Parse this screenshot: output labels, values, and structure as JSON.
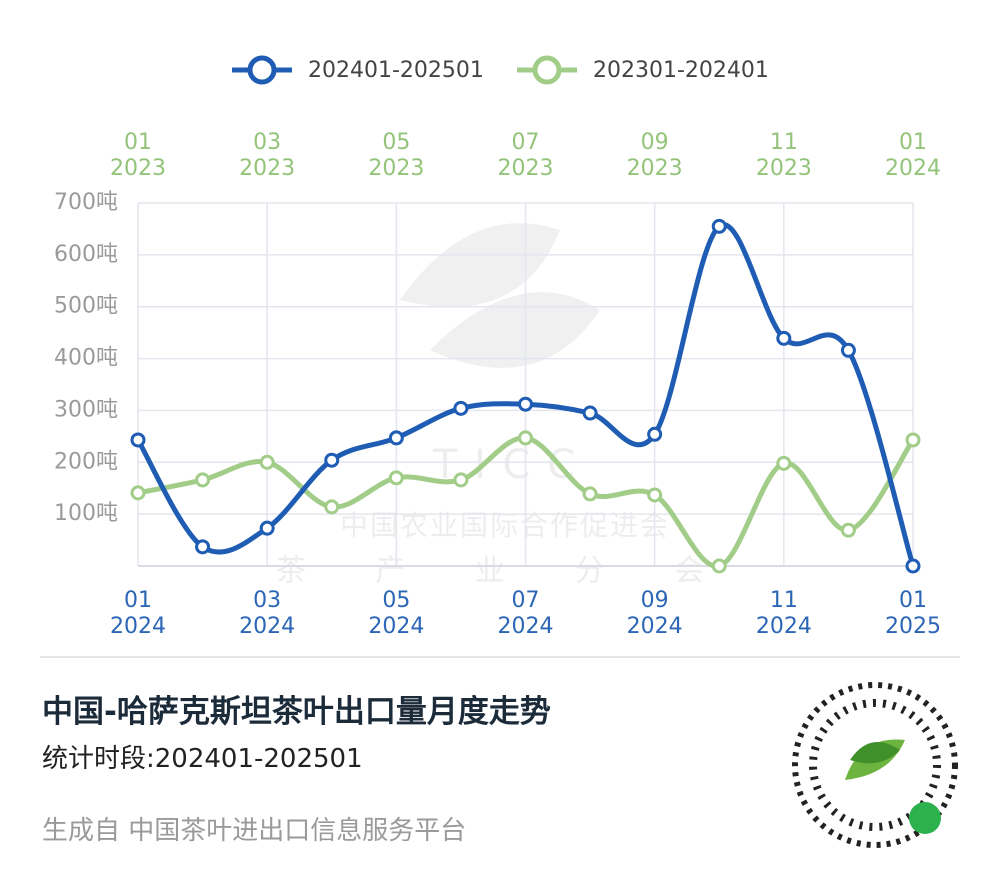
{
  "chart_data": {
    "type": "line",
    "title": "中国-哈萨克斯坦茶叶出口量月度走势",
    "subtitle": "统计时段:202401-202501",
    "footer": "生成自 中国茶叶进出口信息服务平台",
    "watermark": [
      "T I C C",
      "中国农业国际合作促进会",
      "茶 产 业 分 会"
    ],
    "categories": [
      "01\n2024",
      null,
      "03\n2024",
      null,
      "05\n2024",
      null,
      "07\n2024",
      null,
      "09\n2024",
      null,
      "11\n2024",
      null,
      "01\n2025"
    ],
    "top_categories": [
      "01\n2023",
      null,
      "03\n2023",
      null,
      "05\n2023",
      null,
      "07\n2023",
      null,
      "09\n2023",
      null,
      "11\n2023",
      null,
      "01\n2024"
    ],
    "series": [
      {
        "name": "202401-202501",
        "color": "#1f5cb3",
        "values": [
          243,
          37,
          73,
          204,
          247,
          304,
          312,
          295,
          254,
          655,
          439,
          416,
          0
        ]
      },
      {
        "name": "202301-202401",
        "color": "#a2cd89",
        "axis": "x2",
        "values": [
          141,
          166,
          200,
          114,
          170,
          166,
          247,
          139,
          137,
          0,
          198,
          69,
          243
        ]
      }
    ],
    "ylim": [
      0,
      700
    ],
    "yticks": [
      {
        "value": 100,
        "label": "100吨"
      },
      {
        "value": 200,
        "label": "200吨"
      },
      {
        "value": 300,
        "label": "300吨"
      },
      {
        "value": 400,
        "label": "400吨"
      },
      {
        "value": 500,
        "label": "500吨"
      },
      {
        "value": 600,
        "label": "600吨"
      },
      {
        "value": 700,
        "label": "700吨"
      }
    ],
    "grid": true,
    "legend": "top"
  }
}
